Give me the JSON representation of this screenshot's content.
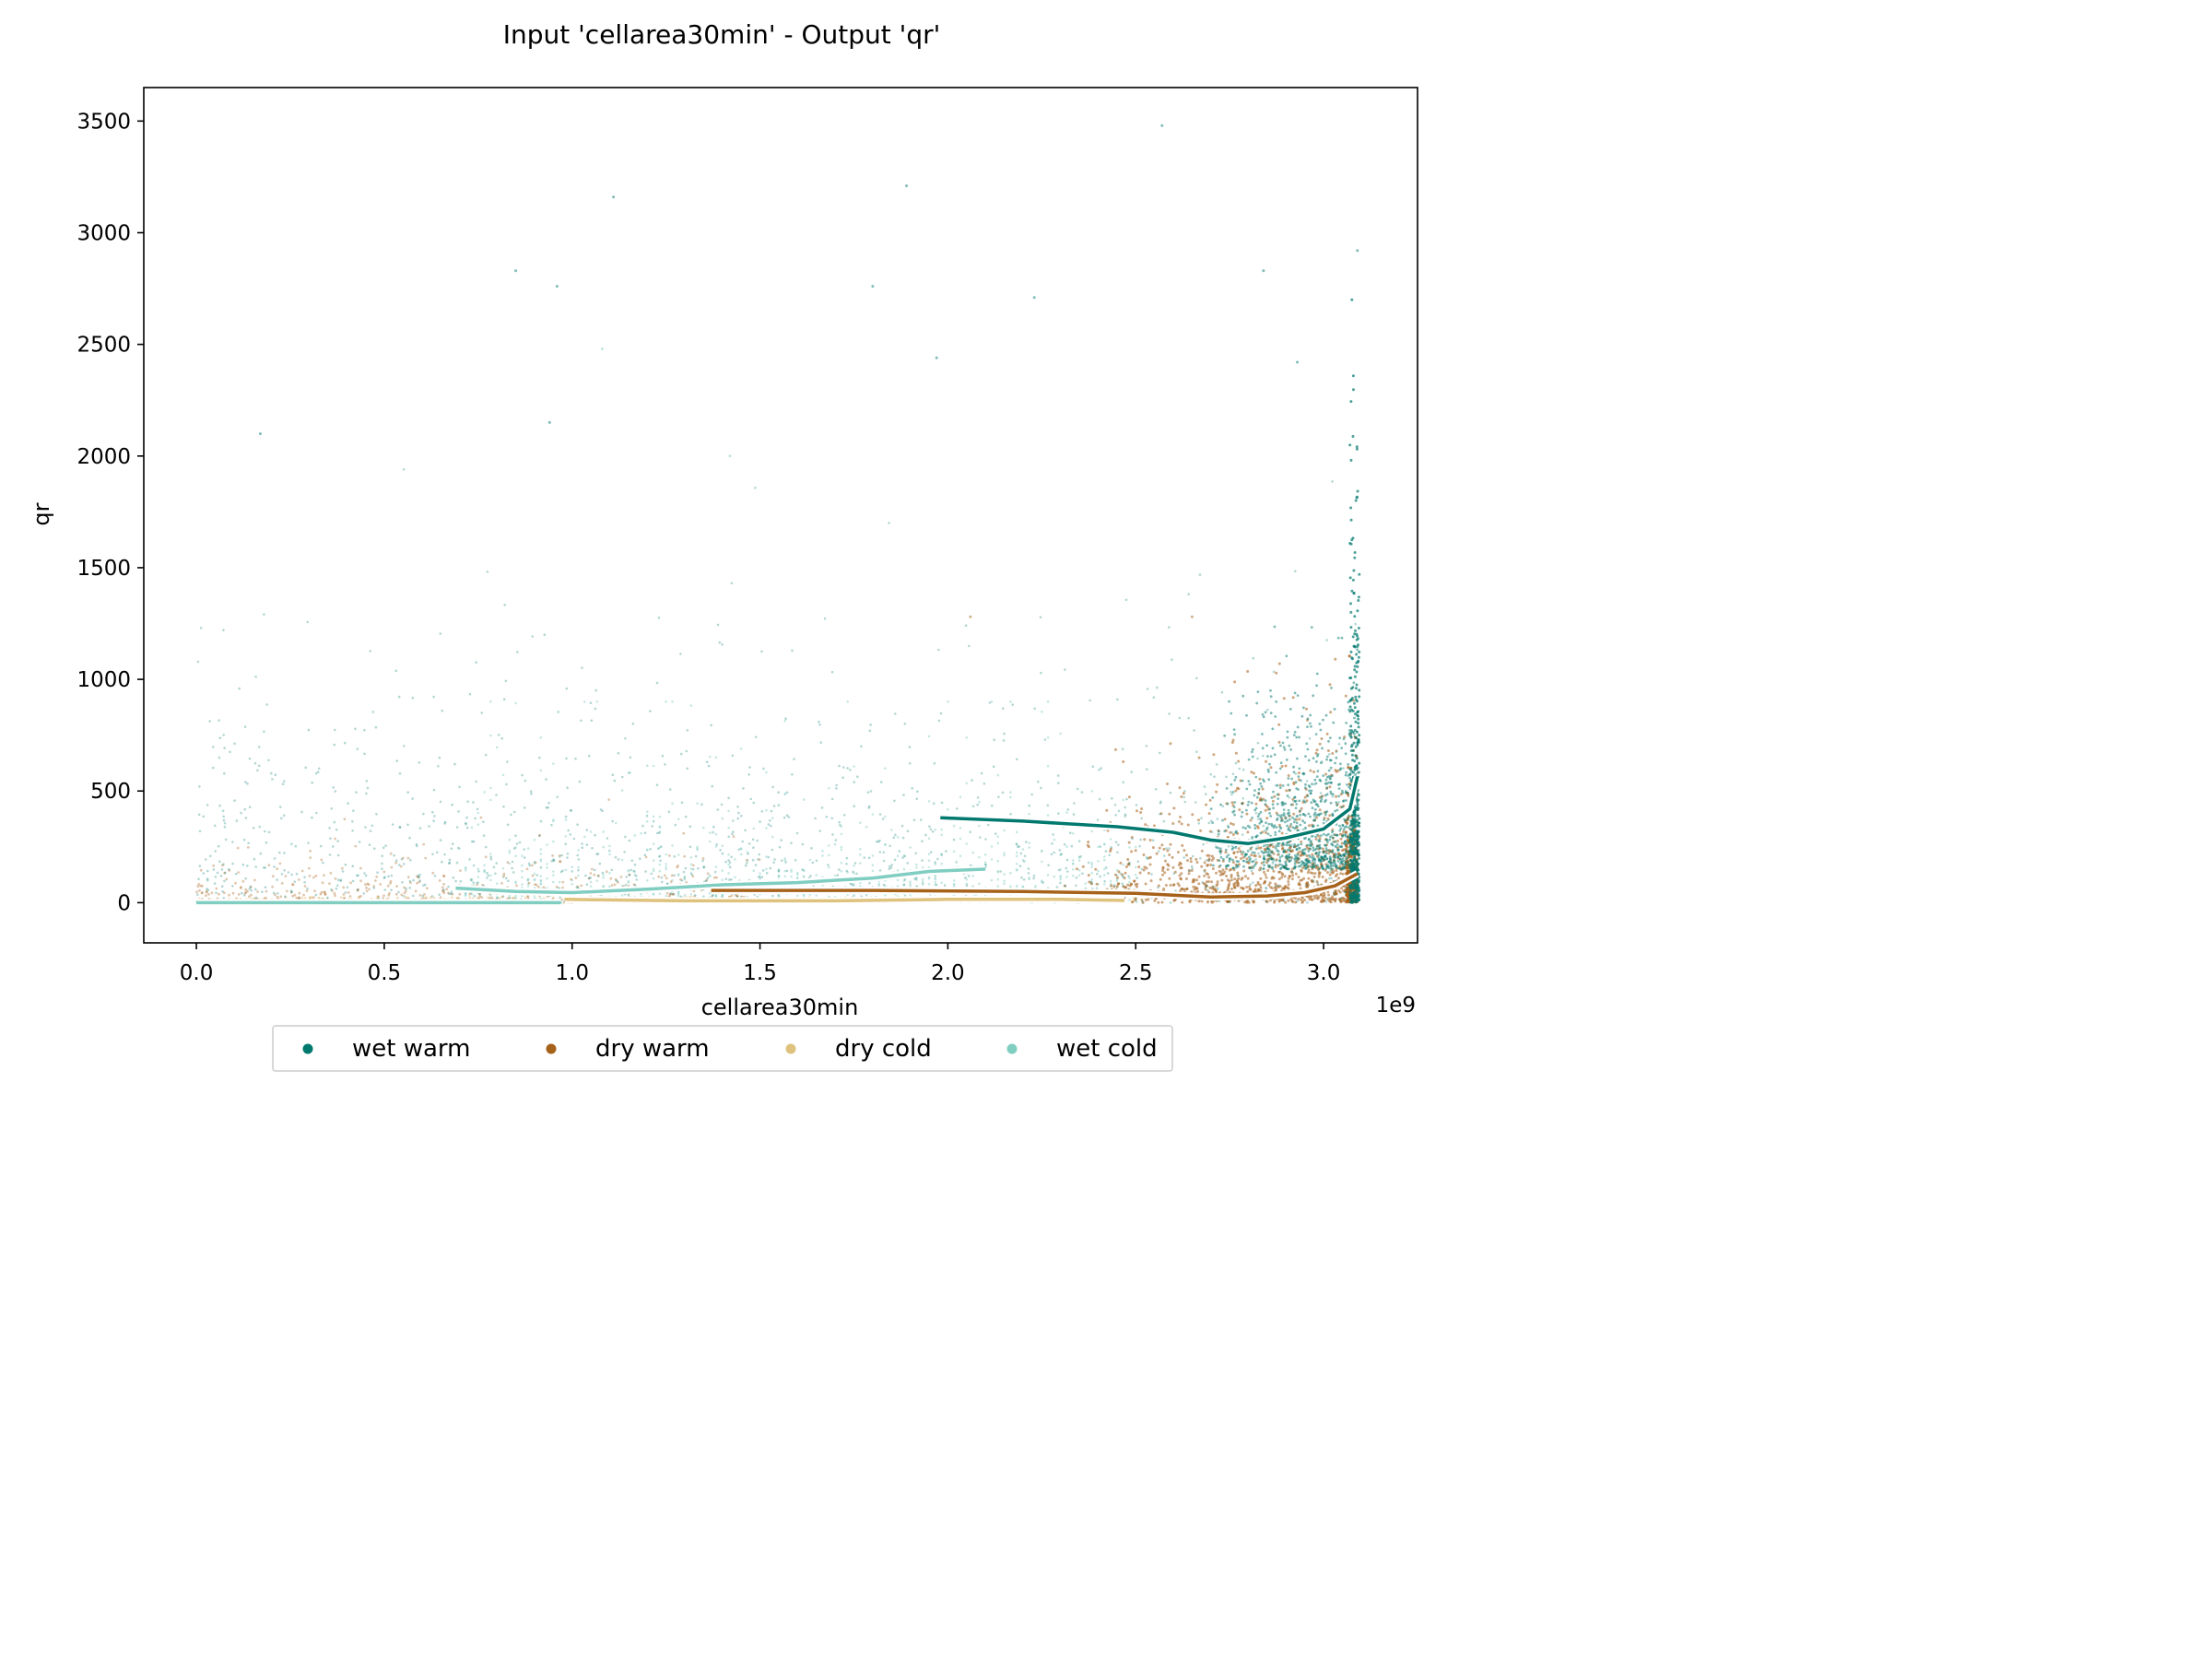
{
  "chart_data": {
    "type": "scatter",
    "title": "Input 'cellarea30min' - Output 'qr'",
    "xlabel": "cellarea30min",
    "ylabel": "qr",
    "x_offset_label": "1e9",
    "xlim": [
      -0.14,
      3.25
    ],
    "ylim": [
      -180,
      3650
    ],
    "x_ticks": [
      0.0,
      0.5,
      1.0,
      1.5,
      2.0,
      2.5,
      3.0
    ],
    "x_tick_labels": [
      "0.0",
      "0.5",
      "1.0",
      "1.5",
      "2.0",
      "2.5",
      "3.0"
    ],
    "y_ticks": [
      0,
      500,
      1000,
      1500,
      2000,
      2500,
      3000,
      3500
    ],
    "y_tick_labels": [
      "0",
      "500",
      "1000",
      "1500",
      "2000",
      "2500",
      "3000",
      "3500"
    ],
    "grid": false,
    "legend_position": "bottom-center",
    "series": [
      {
        "name": "wet warm",
        "color": "#01796f",
        "trend": [
          [
            1.98,
            380
          ],
          [
            2.2,
            365
          ],
          [
            2.45,
            340
          ],
          [
            2.6,
            315
          ],
          [
            2.7,
            280
          ],
          [
            2.8,
            265
          ],
          [
            2.9,
            290
          ],
          [
            3.0,
            330
          ],
          [
            3.07,
            420
          ],
          [
            3.09,
            565
          ]
        ],
        "outliers": [
          [
            2.57,
            3480
          ],
          [
            1.89,
            3210
          ],
          [
            1.11,
            3160
          ],
          [
            0.96,
            2760
          ],
          [
            0.85,
            2830
          ],
          [
            1.8,
            2760
          ],
          [
            2.23,
            2710
          ],
          [
            2.84,
            2830
          ],
          [
            2.93,
            2420
          ],
          [
            1.97,
            2440
          ],
          [
            0.94,
            2150
          ],
          [
            0.17,
            2100
          ],
          [
            3.09,
            2920
          ]
        ]
      },
      {
        "name": "dry warm",
        "color": "#a6611a",
        "trend": [
          [
            1.37,
            55
          ],
          [
            1.8,
            55
          ],
          [
            2.2,
            50
          ],
          [
            2.5,
            42
          ],
          [
            2.7,
            25
          ],
          [
            2.85,
            30
          ],
          [
            2.95,
            45
          ],
          [
            3.03,
            75
          ],
          [
            3.09,
            130
          ]
        ],
        "outliers": [
          [
            2.65,
            1280
          ],
          [
            2.06,
            1280
          ]
        ]
      },
      {
        "name": "dry cold",
        "color": "#dfc27d",
        "trend": [
          [
            0.98,
            15
          ],
          [
            1.3,
            8
          ],
          [
            1.7,
            8
          ],
          [
            2.0,
            15
          ],
          [
            2.3,
            15
          ],
          [
            2.47,
            10
          ]
        ],
        "outliers": []
      },
      {
        "name": "wet cold",
        "color": "#80cdc1",
        "trend": [
          [
            0.69,
            65
          ],
          [
            0.85,
            50
          ],
          [
            1.0,
            45
          ],
          [
            1.2,
            60
          ],
          [
            1.4,
            80
          ],
          [
            1.6,
            90
          ],
          [
            1.8,
            110
          ],
          [
            1.95,
            140
          ],
          [
            2.1,
            150
          ]
        ],
        "trend_flat": [
          [
            0.0,
            0
          ],
          [
            0.97,
            0
          ]
        ],
        "outliers": [
          [
            1.42,
            2000
          ],
          [
            1.08,
            2480
          ]
        ]
      }
    ]
  }
}
